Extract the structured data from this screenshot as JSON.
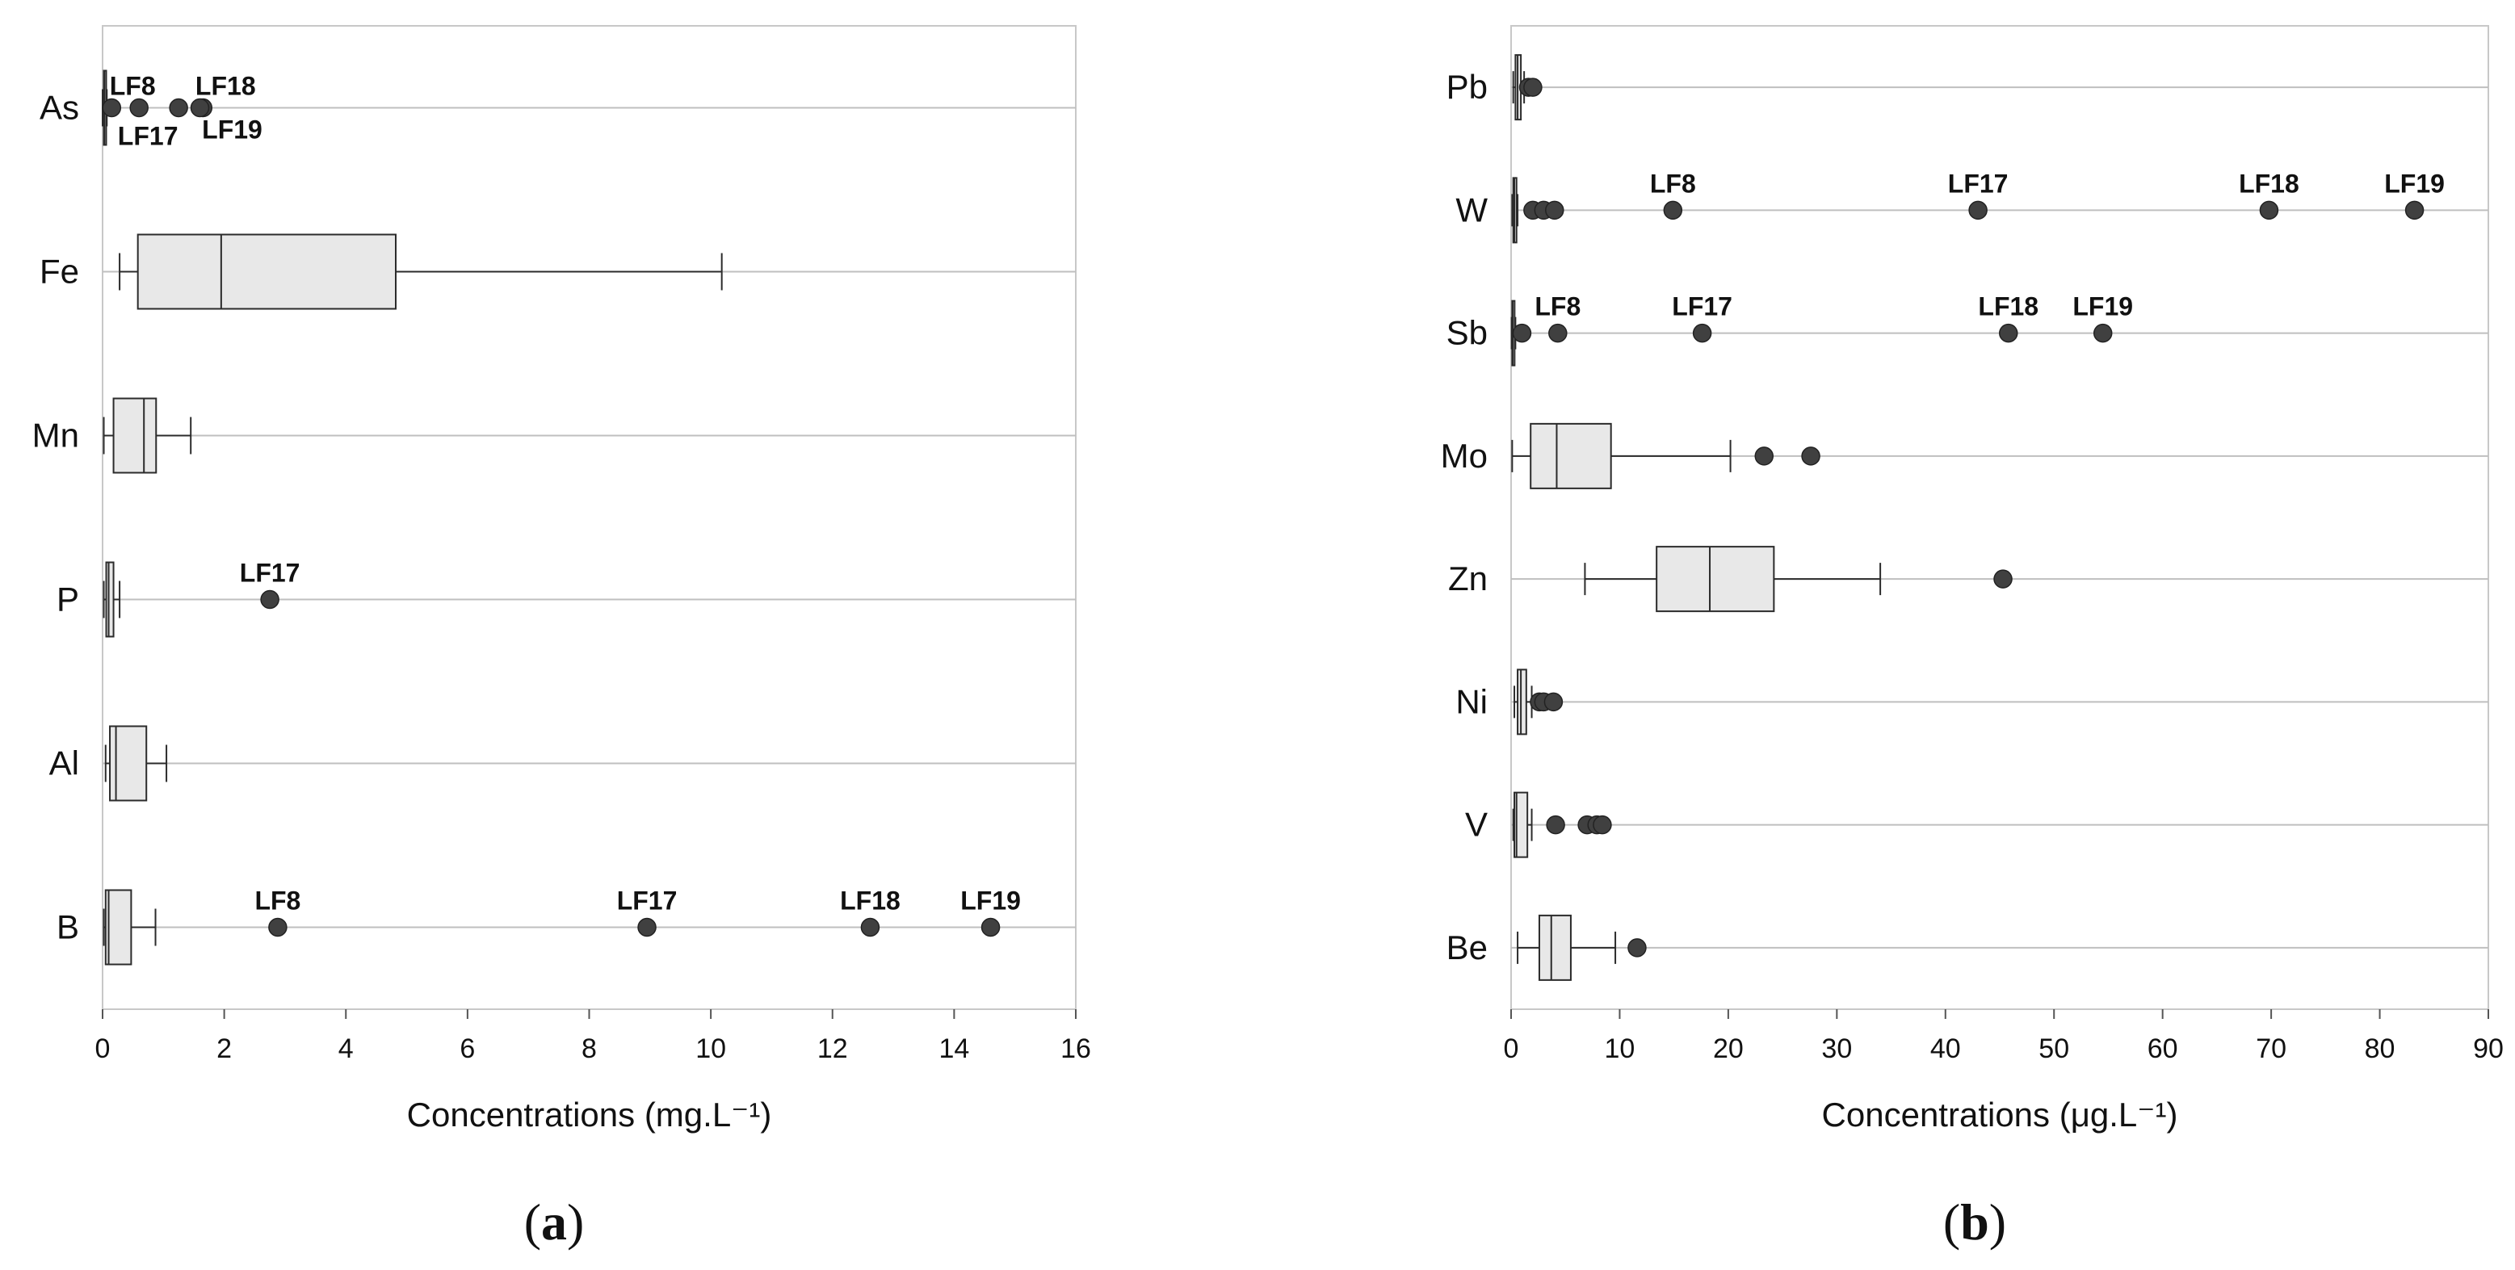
{
  "chart_data": [
    {
      "type": "box",
      "panel_label": "a",
      "xlabel": "Concentrations (mg.L⁻¹)",
      "xlim": [
        0,
        16
      ],
      "xticks": [
        0,
        2,
        4,
        6,
        8,
        10,
        12,
        14,
        16
      ],
      "grid": true,
      "series": [
        {
          "name": "As",
          "min": 0.0,
          "q1": 0.02,
          "median": 0.03,
          "q3": 0.05,
          "max": 0.07,
          "outliers": [
            {
              "x": 0.15
            },
            {
              "x": 0.6,
              "label": "LF8"
            },
            {
              "x": 1.25,
              "label": "LF17"
            },
            {
              "x": 1.65,
              "label": "LF18"
            },
            {
              "x": 1.6,
              "label": "LF19"
            }
          ]
        },
        {
          "name": "Fe",
          "min": 0.28,
          "q1": 0.58,
          "median": 1.95,
          "q3": 4.82,
          "max": 10.18,
          "outliers": []
        },
        {
          "name": "Mn",
          "min": 0.02,
          "q1": 0.18,
          "median": 0.68,
          "q3": 0.88,
          "max": 1.45,
          "outliers": []
        },
        {
          "name": "P",
          "min": 0.02,
          "q1": 0.06,
          "median": 0.1,
          "q3": 0.18,
          "max": 0.28,
          "outliers": [
            {
              "x": 2.75,
              "label": "LF17"
            }
          ]
        },
        {
          "name": "Al",
          "min": 0.05,
          "q1": 0.12,
          "median": 0.22,
          "q3": 0.72,
          "max": 1.05,
          "outliers": []
        },
        {
          "name": "B",
          "min": 0.02,
          "q1": 0.05,
          "median": 0.1,
          "q3": 0.47,
          "max": 0.87,
          "outliers": [
            {
              "x": 2.88,
              "label": "LF8"
            },
            {
              "x": 8.95,
              "label": "LF17"
            },
            {
              "x": 12.62,
              "label": "LF18"
            },
            {
              "x": 14.6,
              "label": "LF19"
            }
          ]
        }
      ]
    },
    {
      "type": "box",
      "panel_label": "b",
      "xlabel": "Concentrations (μg.L⁻¹)",
      "xlim": [
        0,
        90
      ],
      "xticks": [
        0,
        10,
        20,
        30,
        40,
        50,
        60,
        70,
        80,
        90
      ],
      "grid": true,
      "series": [
        {
          "name": "Pb",
          "min": 0.2,
          "q1": 0.4,
          "median": 0.6,
          "q3": 0.9,
          "max": 1.2,
          "outliers": [
            {
              "x": 1.6
            },
            {
              "x": 2.0
            }
          ]
        },
        {
          "name": "W",
          "min": 0.1,
          "q1": 0.2,
          "median": 0.3,
          "q3": 0.5,
          "max": 0.6,
          "outliers": [
            {
              "x": 2.0
            },
            {
              "x": 3.0
            },
            {
              "x": 4.0
            },
            {
              "x": 14.9,
              "label": "LF8"
            },
            {
              "x": 43.0,
              "label": "LF17"
            },
            {
              "x": 69.8,
              "label": "LF18"
            },
            {
              "x": 83.2,
              "label": "LF19"
            }
          ]
        },
        {
          "name": "Sb",
          "min": 0.05,
          "q1": 0.1,
          "median": 0.15,
          "q3": 0.3,
          "max": 0.4,
          "outliers": [
            {
              "x": 1.0
            },
            {
              "x": 4.3,
              "label": "LF8"
            },
            {
              "x": 17.6,
              "label": "LF17"
            },
            {
              "x": 45.8,
              "label": "LF18"
            },
            {
              "x": 54.5,
              "label": "LF19"
            }
          ]
        },
        {
          "name": "Mo",
          "min": 0.1,
          "q1": 1.8,
          "median": 4.2,
          "q3": 9.2,
          "max": 20.2,
          "outliers": [
            {
              "x": 23.3
            },
            {
              "x": 27.6
            }
          ]
        },
        {
          "name": "Zn",
          "min": 6.8,
          "q1": 13.4,
          "median": 18.3,
          "q3": 24.2,
          "max": 34.0,
          "outliers": [
            {
              "x": 45.3
            }
          ]
        },
        {
          "name": "Ni",
          "min": 0.3,
          "q1": 0.6,
          "median": 0.9,
          "q3": 1.4,
          "max": 1.9,
          "outliers": [
            {
              "x": 2.6
            },
            {
              "x": 3.0
            },
            {
              "x": 3.9
            }
          ]
        },
        {
          "name": "V",
          "min": 0.2,
          "q1": 0.3,
          "median": 0.5,
          "q3": 1.5,
          "max": 1.9,
          "outliers": [
            {
              "x": 4.1
            },
            {
              "x": 7.0
            },
            {
              "x": 7.9
            },
            {
              "x": 8.4
            }
          ]
        },
        {
          "name": "Be",
          "min": 0.6,
          "q1": 2.6,
          "median": 3.7,
          "q3": 5.5,
          "max": 9.6,
          "outliers": [
            {
              "x": 11.6
            }
          ]
        }
      ]
    }
  ],
  "panel_labels": {
    "a": "(a)",
    "b": "(b)"
  },
  "colors": {
    "box_fill": "#e8e8e8",
    "box_stroke": "#2b2b2b",
    "grid": "#bfbfbf",
    "frame": "#c8c8c8",
    "outlier": "#404040"
  }
}
